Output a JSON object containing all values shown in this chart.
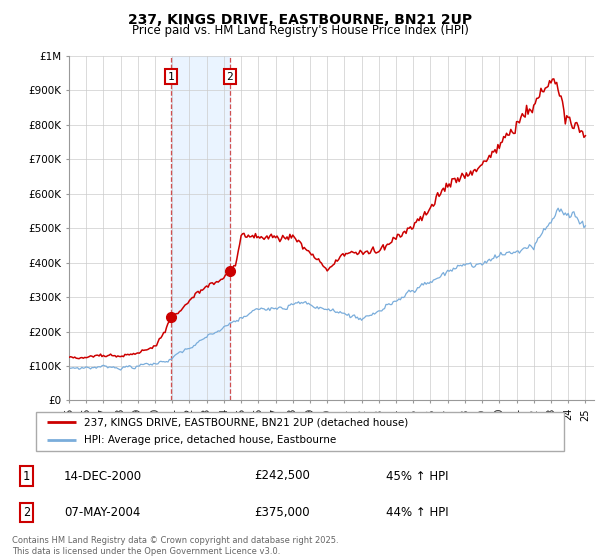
{
  "title": "237, KINGS DRIVE, EASTBOURNE, BN21 2UP",
  "subtitle": "Price paid vs. HM Land Registry's House Price Index (HPI)",
  "legend_entry1": "237, KINGS DRIVE, EASTBOURNE, BN21 2UP (detached house)",
  "legend_entry2": "HPI: Average price, detached house, Eastbourne",
  "transaction1_date": "14-DEC-2000",
  "transaction1_price": "£242,500",
  "transaction1_hpi": "45% ↑ HPI",
  "transaction2_date": "07-MAY-2004",
  "transaction2_price": "£375,000",
  "transaction2_hpi": "44% ↑ HPI",
  "footer": "Contains HM Land Registry data © Crown copyright and database right 2025.\nThis data is licensed under the Open Government Licence v3.0.",
  "line1_color": "#cc0000",
  "line2_color": "#7aaddb",
  "shade_color": "#ddeeff",
  "vline_color": "#cc3333",
  "ylim": [
    0,
    1000000
  ],
  "yticks": [
    0,
    100000,
    200000,
    300000,
    400000,
    500000,
    600000,
    700000,
    800000,
    900000,
    1000000
  ],
  "ytick_labels": [
    "£0",
    "£100K",
    "£200K",
    "£300K",
    "£400K",
    "£500K",
    "£600K",
    "£700K",
    "£800K",
    "£900K",
    "£1M"
  ]
}
